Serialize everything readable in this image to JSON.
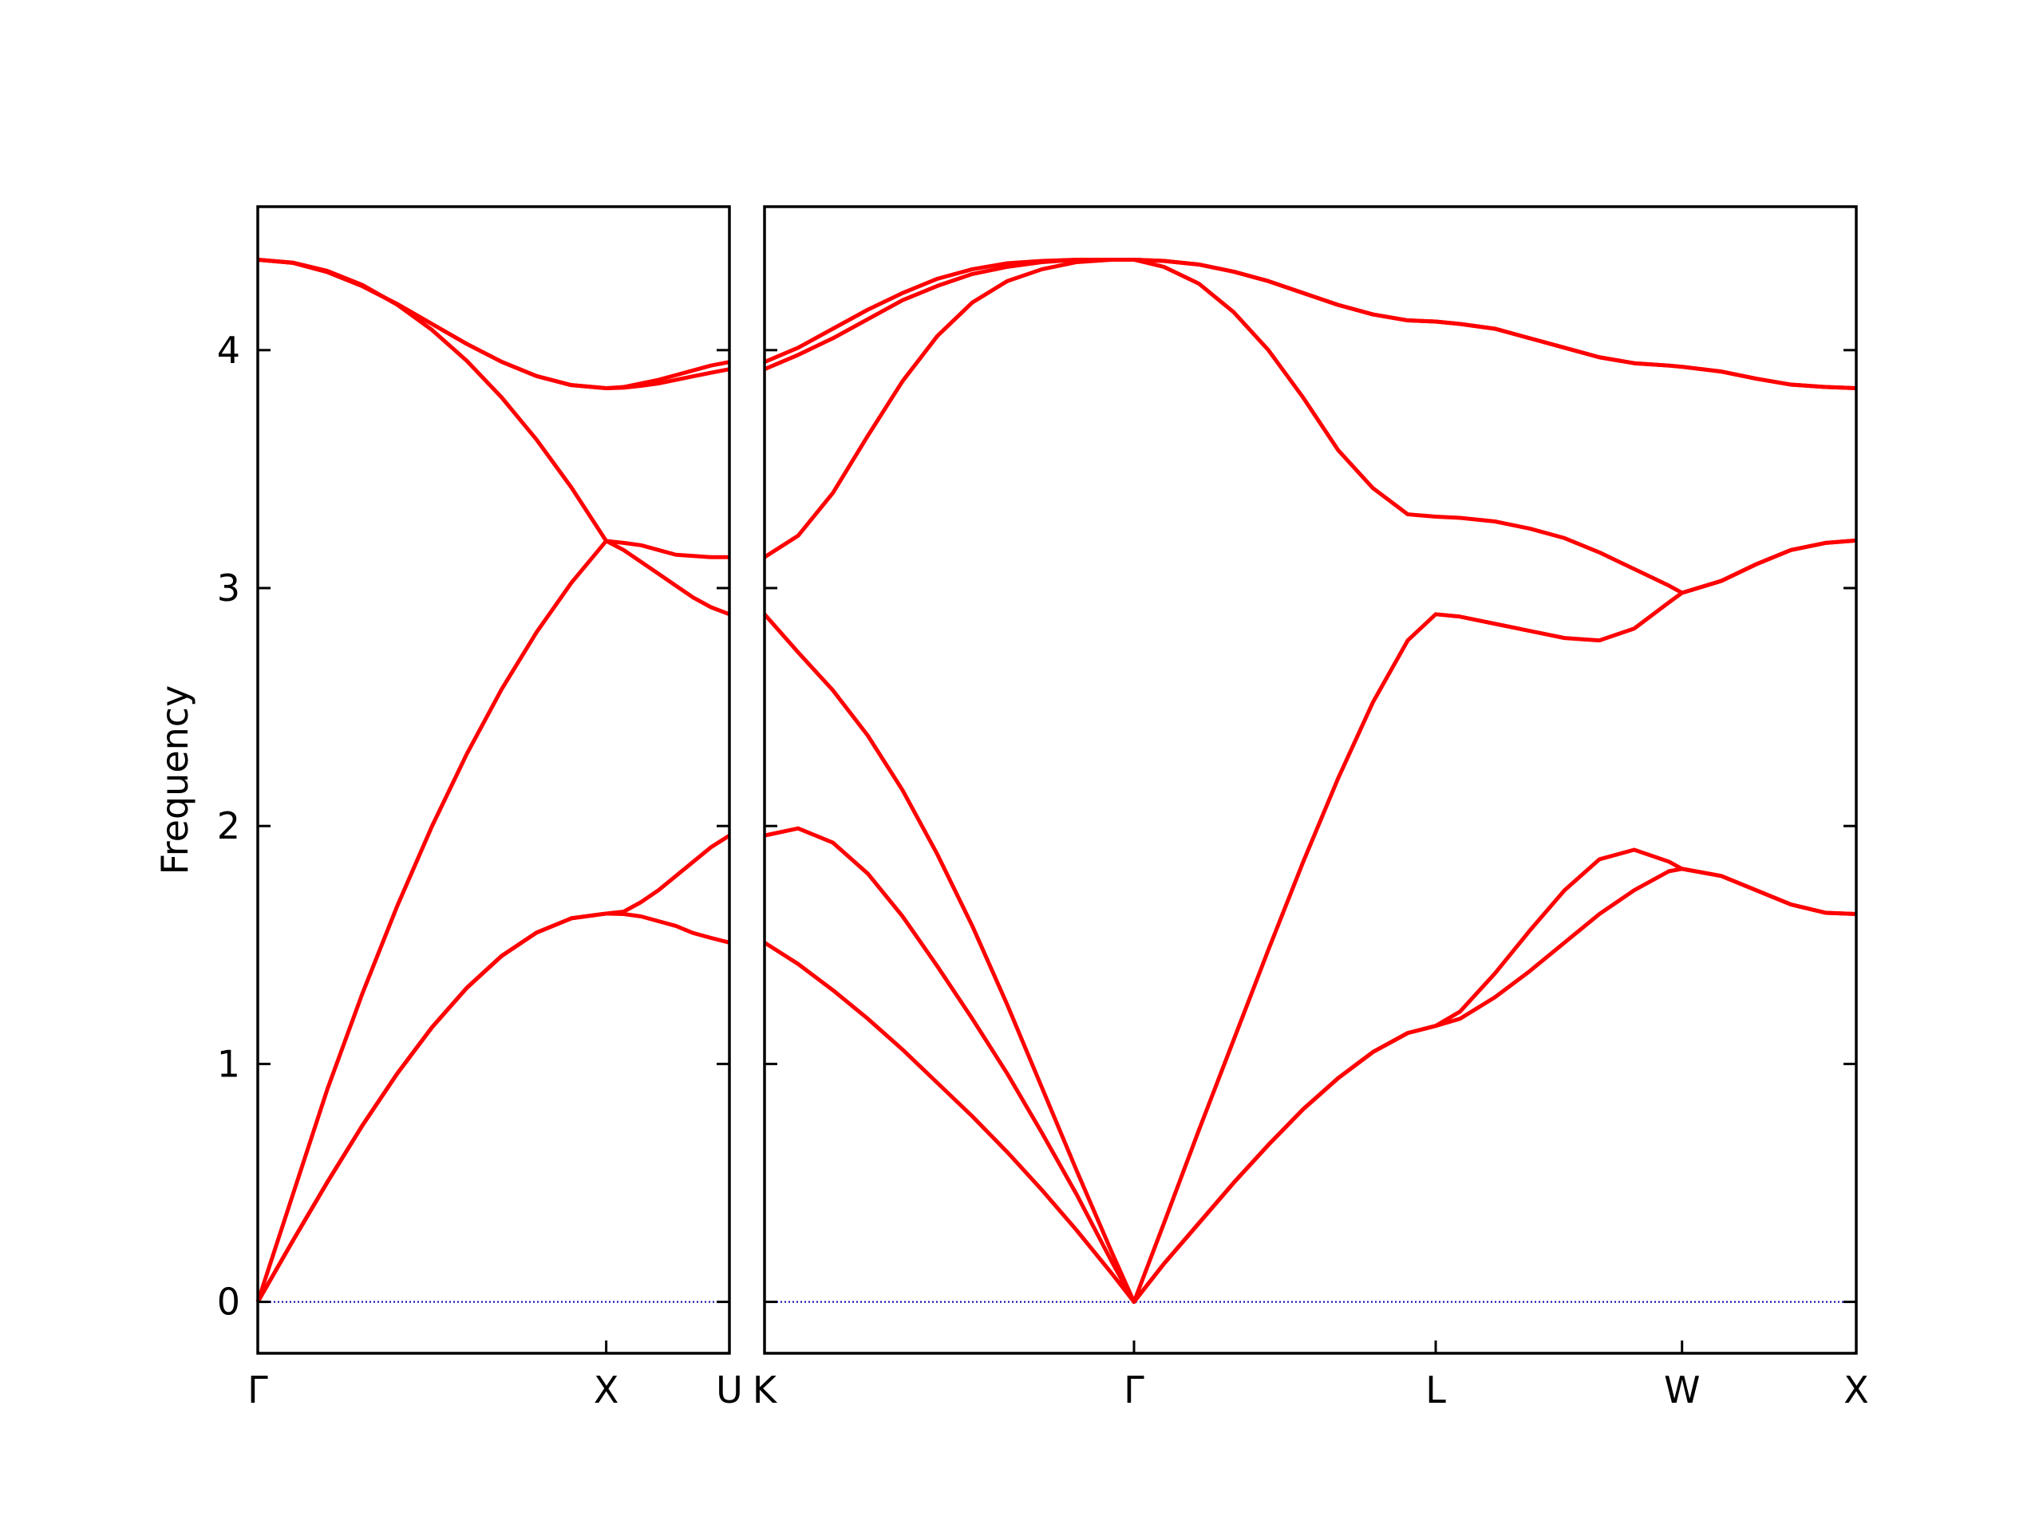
{
  "chart_data": [
    {
      "type": "line",
      "ylabel": "Frequency",
      "xlim": [
        0,
        1.3536
      ],
      "ylim": [
        -0.216,
        4.603
      ],
      "xticks": [
        {
          "value": 0,
          "label": "Γ"
        },
        {
          "value": 1,
          "label": "X"
        },
        {
          "value": 1.3536,
          "label": "U"
        }
      ],
      "yticks": [
        0,
        1,
        2,
        3,
        4
      ],
      "ytick_labels": true,
      "grid": false,
      "hline": 0,
      "hline_color": "#0000aa",
      "x": [
        0,
        0.1,
        0.2,
        0.3,
        0.4,
        0.5,
        0.6,
        0.7,
        0.8,
        0.9,
        1.0,
        1.05,
        1.1,
        1.15,
        1.2,
        1.25,
        1.3,
        1.3536
      ],
      "series": [
        {
          "color": "#ff0000",
          "values": [
            0,
            0.255,
            0.504,
            0.741,
            0.959,
            1.154,
            1.32,
            1.454,
            1.552,
            1.612,
            1.632,
            1.63,
            1.62,
            1.6,
            1.58,
            1.55,
            1.53,
            1.51
          ]
        },
        {
          "color": "#ff0000",
          "values": [
            0,
            0.255,
            0.504,
            0.741,
            0.959,
            1.154,
            1.32,
            1.454,
            1.552,
            1.612,
            1.632,
            1.64,
            1.68,
            1.73,
            1.79,
            1.85,
            1.91,
            1.96
          ]
        },
        {
          "color": "#ff0000",
          "values": [
            0,
            0.448,
            0.895,
            1.295,
            1.663,
            1.999,
            2.303,
            2.575,
            2.814,
            3.022,
            3.198,
            3.16,
            3.11,
            3.06,
            3.01,
            2.96,
            2.92,
            2.89
          ]
        },
        {
          "color": "#ff0000",
          "values": [
            4.38,
            4.368,
            4.333,
            4.274,
            4.191,
            4.085,
            3.955,
            3.801,
            3.624,
            3.423,
            3.198,
            3.19,
            3.18,
            3.16,
            3.14,
            3.135,
            3.13,
            3.13
          ]
        },
        {
          "color": "#ff0000",
          "values": [
            4.38,
            4.367,
            4.328,
            4.269,
            4.194,
            4.11,
            4.026,
            3.951,
            3.891,
            3.853,
            3.84,
            3.842,
            3.85,
            3.86,
            3.875,
            3.89,
            3.905,
            3.92
          ]
        },
        {
          "color": "#ff0000",
          "values": [
            4.38,
            4.367,
            4.328,
            4.269,
            4.194,
            4.11,
            4.026,
            3.951,
            3.891,
            3.853,
            3.84,
            3.845,
            3.86,
            3.875,
            3.895,
            3.915,
            3.935,
            3.95
          ]
        }
      ]
    },
    {
      "type": "line",
      "xlim": [
        1.3536,
        4.4874
      ],
      "ylim": [
        -0.216,
        4.603
      ],
      "xticks": [
        {
          "value": 1.3536,
          "label": "K"
        },
        {
          "value": 2.4142,
          "label": "Γ"
        },
        {
          "value": 3.2802,
          "label": "L"
        },
        {
          "value": 3.9873,
          "label": "W"
        },
        {
          "value": 4.4874,
          "label": "X"
        }
      ],
      "yticks": [
        0,
        1,
        2,
        3,
        4
      ],
      "ytick_labels": false,
      "grid": false,
      "hline": 0,
      "hline_color": "#0000aa",
      "x": [
        1.3536,
        1.45,
        1.55,
        1.65,
        1.75,
        1.85,
        1.95,
        2.05,
        2.15,
        2.25,
        2.35,
        2.4142,
        2.5,
        2.6,
        2.7,
        2.8,
        2.9,
        3.0,
        3.1,
        3.2,
        3.2802,
        3.35,
        3.45,
        3.55,
        3.65,
        3.75,
        3.85,
        3.95,
        3.9873,
        4.1,
        4.2,
        4.3,
        4.4,
        4.4874
      ],
      "series": [
        {
          "color": "#ff0000",
          "values": [
            1.51,
            1.42,
            1.31,
            1.19,
            1.06,
            0.92,
            0.78,
            0.63,
            0.47,
            0.3,
            0.12,
            0,
            0.16,
            0.33,
            0.5,
            0.66,
            0.81,
            0.94,
            1.05,
            1.13,
            1.16,
            1.19,
            1.28,
            1.39,
            1.51,
            1.63,
            1.73,
            1.81,
            1.82,
            1.79,
            1.73,
            1.67,
            1.635,
            1.63
          ]
        },
        {
          "color": "#ff0000",
          "values": [
            1.96,
            1.99,
            1.93,
            1.8,
            1.62,
            1.41,
            1.19,
            0.96,
            0.71,
            0.45,
            0.17,
            0,
            0.16,
            0.33,
            0.5,
            0.66,
            0.81,
            0.94,
            1.05,
            1.13,
            1.16,
            1.22,
            1.38,
            1.56,
            1.73,
            1.86,
            1.9,
            1.85,
            1.82,
            1.79,
            1.73,
            1.67,
            1.635,
            1.63
          ]
        },
        {
          "color": "#ff0000",
          "values": [
            2.89,
            2.73,
            2.57,
            2.38,
            2.15,
            1.88,
            1.58,
            1.25,
            0.9,
            0.55,
            0.21,
            0,
            0.33,
            0.72,
            1.1,
            1.48,
            1.85,
            2.2,
            2.52,
            2.78,
            2.89,
            2.88,
            2.85,
            2.82,
            2.79,
            2.78,
            2.83,
            2.94,
            2.98,
            3.03,
            3.1,
            3.16,
            3.19,
            3.2
          ]
        },
        {
          "color": "#ff0000",
          "values": [
            3.13,
            3.22,
            3.4,
            3.64,
            3.87,
            4.06,
            4.2,
            4.29,
            4.34,
            4.37,
            4.38,
            4.38,
            4.35,
            4.28,
            4.16,
            4.0,
            3.8,
            3.58,
            3.42,
            3.31,
            3.3,
            3.295,
            3.28,
            3.25,
            3.21,
            3.15,
            3.08,
            3.01,
            2.98,
            3.03,
            3.1,
            3.16,
            3.19,
            3.2
          ]
        },
        {
          "color": "#ff0000",
          "values": [
            3.92,
            3.98,
            4.05,
            4.13,
            4.21,
            4.27,
            4.32,
            4.35,
            4.37,
            4.38,
            4.38,
            4.38,
            4.375,
            4.36,
            4.33,
            4.29,
            4.24,
            4.19,
            4.15,
            4.125,
            4.12,
            4.11,
            4.09,
            4.05,
            4.01,
            3.97,
            3.945,
            3.935,
            3.93,
            3.91,
            3.88,
            3.855,
            3.845,
            3.84
          ]
        },
        {
          "color": "#ff0000",
          "values": [
            3.95,
            4.01,
            4.09,
            4.17,
            4.24,
            4.3,
            4.34,
            4.365,
            4.375,
            4.38,
            4.38,
            4.38,
            4.375,
            4.36,
            4.33,
            4.29,
            4.24,
            4.19,
            4.15,
            4.125,
            4.12,
            4.11,
            4.09,
            4.05,
            4.01,
            3.97,
            3.945,
            3.935,
            3.93,
            3.91,
            3.88,
            3.855,
            3.845,
            3.84
          ]
        }
      ]
    }
  ]
}
